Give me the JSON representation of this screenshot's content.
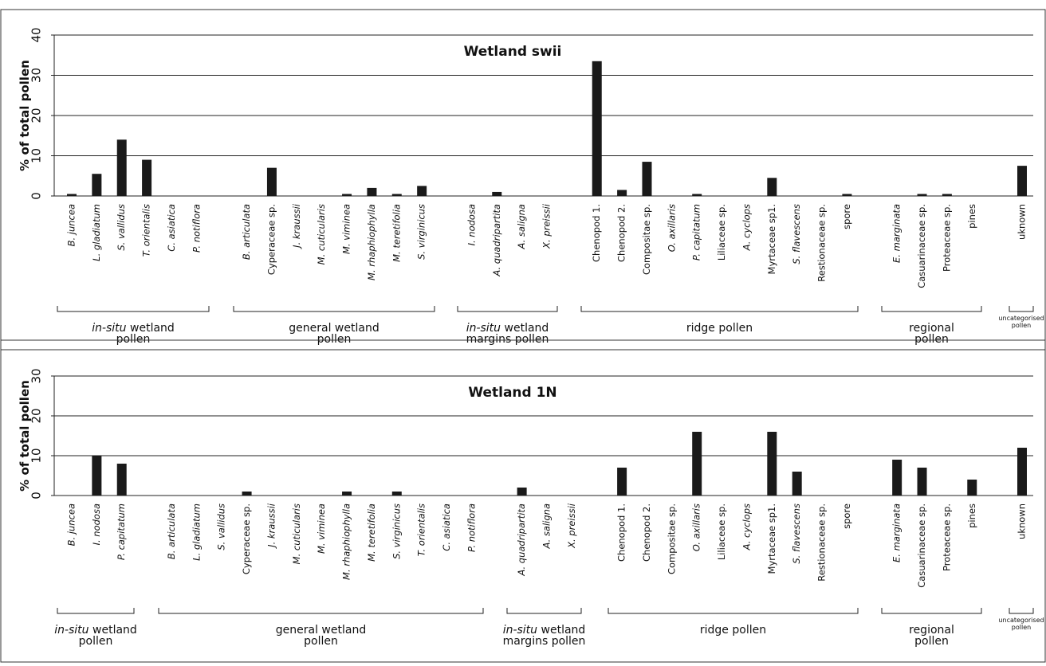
{
  "chart_data": [
    {
      "type": "bar",
      "title": "Wetland swii",
      "ylabel": "% of total pollen",
      "ylim": [
        0,
        40
      ],
      "yticks": [
        0,
        10,
        20,
        30,
        40
      ],
      "grid": "horizontal",
      "bar_color": "#1a1a1a",
      "categories": [
        "B. juncea",
        "L. gladiatum",
        "S. vallidus",
        "T. orientalis",
        "C. asiatica",
        "P. notiflora",
        "",
        "B. articulata",
        "Cyperaceae sp.",
        "J. kraussii",
        "M. cuticularis",
        "M. viminea",
        "M. rhaphiophylla",
        "M. teretifolia",
        "S. virginicus",
        "",
        "I. nodosa",
        "A. quadripartita",
        "A. saligna",
        "X. preissii",
        "",
        "Chenopod 1.",
        "Chenopod 2.",
        "Compositae sp.",
        "O. axillaris",
        "P. capitatum",
        "Liliaceae sp.",
        "A. cyclops",
        "Myrtaceae sp1.",
        "S. flavescens",
        "Restionaceae sp.",
        "spore",
        "",
        "E. marginata",
        "Casuarinaceae sp.",
        "Proteaceae sp.",
        "pines",
        "",
        "uknown"
      ],
      "values": [
        0.5,
        5.5,
        14,
        9,
        0,
        0,
        0,
        0,
        7,
        0,
        0,
        0.5,
        2,
        0.5,
        2.5,
        0,
        0,
        1,
        0,
        0,
        0,
        33.5,
        1.5,
        8.5,
        0,
        0.5,
        0,
        0,
        4.5,
        0,
        0,
        0.5,
        0,
        0,
        0.5,
        0.5,
        0,
        0,
        7.5
      ],
      "groups": [
        {
          "prefix": "in-situ",
          "line1": " wetland",
          "line2": "pollen"
        },
        {
          "prefix": "",
          "line1": "general wetland",
          "line2": "pollen"
        },
        {
          "prefix": "in-situ",
          "line1": " wetland",
          "line2": "margins pollen"
        },
        {
          "prefix": "",
          "line1": "ridge pollen",
          "line2": ""
        },
        {
          "prefix": "",
          "line1": "regional",
          "line2": "pollen"
        },
        {
          "prefix": "",
          "line1": "uncategorised",
          "line2": "pollen"
        }
      ]
    },
    {
      "type": "bar",
      "title": "Wetland 1N",
      "ylabel": "% of total pollen",
      "ylim": [
        0,
        30
      ],
      "yticks": [
        0,
        10,
        20,
        30
      ],
      "grid": "horizontal",
      "bar_color": "#1a1a1a",
      "categories": [
        "B. juncea",
        "I. nodosa",
        "P. capitatum",
        "",
        "B. articulata",
        "L. gladiatum",
        "S. vallidus",
        "Cyperaceae sp.",
        "J. kraussii",
        "M. cuticularis",
        "M. viminea",
        "M. rhaphiophylla",
        "M. teretifolia",
        "S. virginicus",
        "T. orientalis",
        "C. asiatica",
        "P. notiflora",
        "",
        "A. quadripartita",
        "A. saligna",
        "X. preissii",
        "",
        "Chenopod 1.",
        "Chenopod 2.",
        "Compositae sp.",
        "O. axillaris",
        "Liliaceae sp.",
        "A. cyclops",
        "Myrtaceae sp1.",
        "S. flavescens",
        "Restionaceae sp.",
        "spore",
        "",
        "E. marginata",
        "Casuarinaceae sp.",
        "Proteaceae sp.",
        "pines",
        "",
        "uknown"
      ],
      "values": [
        0,
        10,
        8,
        0,
        0,
        0,
        0,
        1,
        0,
        0,
        0,
        1,
        0,
        1,
        0,
        0,
        0,
        0,
        2,
        0,
        0,
        0,
        7,
        0,
        0,
        16,
        0,
        0,
        16,
        6,
        0,
        0,
        0,
        9,
        7,
        0,
        4,
        0,
        12
      ],
      "groups": [
        {
          "prefix": "in-situ",
          "line1": " wetland",
          "line2": "pollen"
        },
        {
          "prefix": "",
          "line1": "general wetland",
          "line2": "pollen"
        },
        {
          "prefix": "in-situ",
          "line1": " wetland",
          "line2": "margins pollen"
        },
        {
          "prefix": "",
          "line1": "ridge pollen",
          "line2": ""
        },
        {
          "prefix": "",
          "line1": "regional",
          "line2": "pollen"
        },
        {
          "prefix": "",
          "line1": "uncategorised",
          "line2": "pollen"
        }
      ]
    }
  ]
}
